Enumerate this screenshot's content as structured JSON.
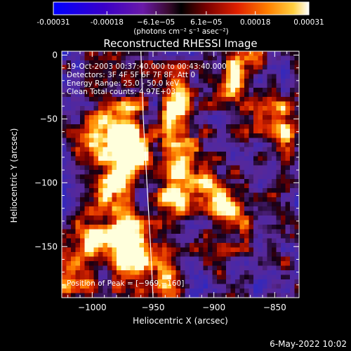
{
  "chart_data": {
    "type": "heatmap",
    "title": "Reconstructed RHESSI Image",
    "xlabel": "Heliocentric X (arcsec)",
    "ylabel": "Heliocentric Y (arcsec)",
    "xlim": [
      -1025,
      -830
    ],
    "ylim": [
      -190,
      3
    ],
    "x_ticks": [
      -1000,
      -950,
      -900,
      -850
    ],
    "x_tick_labels": [
      "−1000",
      "−950",
      "−900",
      "−850"
    ],
    "y_ticks": [
      0,
      -50,
      -100,
      -150
    ],
    "y_tick_labels": [
      "0",
      "−50",
      "−100",
      "−150"
    ],
    "colorbar": {
      "range": [
        -0.00031,
        0.00031
      ],
      "tick_values": [
        -0.00031,
        -0.00018,
        -6.1e-05,
        6.1e-05,
        0.00018,
        0.00031
      ],
      "tick_labels": [
        "-0.00031",
        "-0.00018",
        "−6.1e−05",
        "6.1e−05",
        "0.00018",
        "0.00031"
      ],
      "unit_label": "(photons cm⁻² s⁻¹ asec⁻²)"
    },
    "annotations": [
      "19-Oct-2003 00:37:40.000 to 00:43:40.000",
      "Detectors: 3F 4F 5F 6F 7F 8F, Att 0",
      "Energy Range: 25.0 - 50.0 keV",
      "Clean     Total counts: 4.97E+03"
    ],
    "peak_label": "Position of Peak = [−969,−160]",
    "peak": [
      -969,
      -160
    ],
    "limb_curve": [
      [
        -960,
        3
      ],
      [
        -958,
        -50
      ],
      [
        -955,
        -100
      ],
      [
        -952,
        -150
      ],
      [
        -950,
        -190
      ]
    ],
    "bright_regions": [
      {
        "x": -975,
        "y": -50,
        "level": 0.9
      },
      {
        "x": -965,
        "y": -77,
        "level": 0.95
      },
      {
        "x": -995,
        "y": -62,
        "level": 0.85
      },
      {
        "x": -930,
        "y": -40,
        "level": 0.9
      },
      {
        "x": -935,
        "y": -110,
        "level": 0.85
      },
      {
        "x": -980,
        "y": -100,
        "level": 0.8
      },
      {
        "x": -975,
        "y": -145,
        "level": 0.85
      },
      {
        "x": -969,
        "y": -160,
        "level": 1.0
      },
      {
        "x": -1000,
        "y": -140,
        "level": 0.75
      },
      {
        "x": -925,
        "y": -85,
        "level": 0.8
      },
      {
        "x": -880,
        "y": -15,
        "level": 0.85
      },
      {
        "x": -885,
        "y": -125,
        "level": 0.8
      },
      {
        "x": -940,
        "y": -175,
        "level": 0.85
      },
      {
        "x": -845,
        "y": -55,
        "level": 0.8
      },
      {
        "x": -905,
        "y": -110,
        "level": 0.75
      },
      {
        "x": -1015,
        "y": -175,
        "level": 0.6
      }
    ]
  },
  "footer": {
    "timestamp": "6-May-2022 10:02"
  }
}
